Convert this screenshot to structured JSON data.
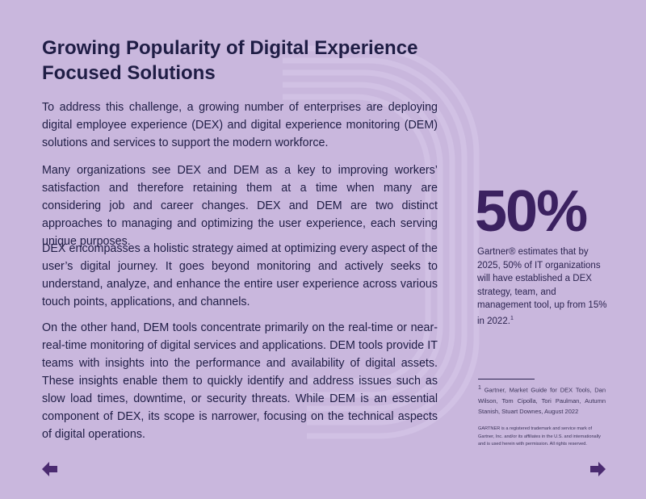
{
  "title": "Growing Popularity of Digital Experience Focused Solutions",
  "paragraphs": [
    "To address this challenge, a growing number of enterprises are deploying digital employee experience (DEX) and digital experience monitoring (DEM) solutions and services to support the modern workforce.",
    "Many organizations see DEX and DEM as a key to improving workers’ satisfaction and therefore retaining them at a time when many are considering job and career changes. DEX and DEM are two distinct approaches to managing and optimizing the user experience, each serving unique purposes.",
    "DEX encompasses a holistic strategy aimed at optimizing every aspect of the user’s digital journey. It goes beyond monitoring and actively seeks to understand, analyze, and enhance the entire user experience across various touch points, applications, and channels.",
    "On the other hand, DEM tools concentrate primarily on the real-time or near-real-time monitoring of digital services and applications. DEM tools provide IT teams with insights into the performance and availability of digital assets. These insights enable them to quickly identify and address issues such as slow load times, downtime, or security threats. While DEM is an essential component of DEX, its scope is narrower, focusing on the technical aspects of digital operations."
  ],
  "stat": {
    "value": "50%",
    "note": "Gartner® estimates that by 2025, 50% of IT organizations will have established a DEX strategy, team, and management tool, up from 15% in 2022.",
    "note_ref": "1"
  },
  "footnote": {
    "marker": "1",
    "text": "Gartner, Market Guide for DEX Tools, Dan Wilson, Tom Cipolla, Tori Paulman, Autumn Stanish, Stuart Downes, August 2022"
  },
  "disclaimer": "GARTNER is a registered trademark and service mark of Gartner, Inc. and/or its affiliates in the U.S. and internationally and is used herein with permission. All rights reserved."
}
